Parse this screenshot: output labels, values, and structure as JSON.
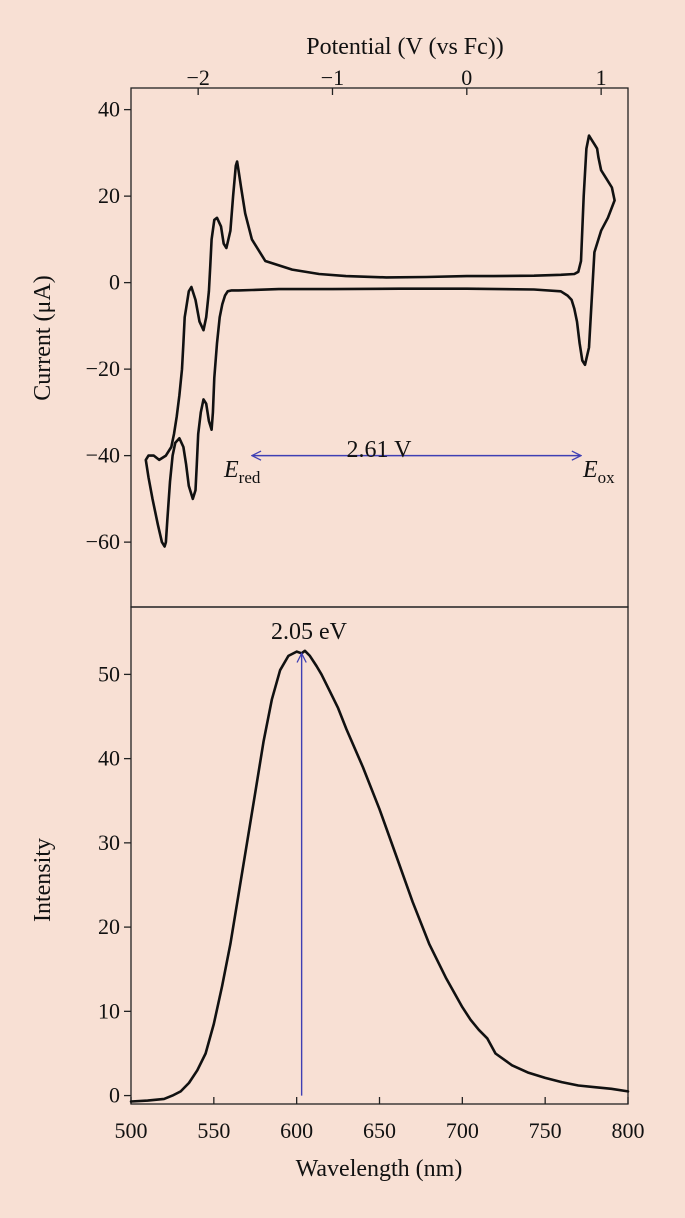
{
  "chart_data": [
    {
      "type": "line",
      "name_hint": "cyclic-voltammogram",
      "xlabel": "Potential (V (vs Fc))",
      "ylabel": "Current (μA)",
      "xlim": [
        -2.5,
        1.2
      ],
      "ylim": [
        -75,
        45
      ],
      "xticks": [
        -2,
        -1,
        0,
        1
      ],
      "xtick_labels": [
        "−2",
        "−1",
        "0",
        "1"
      ],
      "yticks": [
        40,
        20,
        0,
        -20,
        -40,
        -60
      ],
      "ytick_labels": [
        "40",
        "20",
        "0",
        "−20",
        "−40",
        "−60"
      ],
      "x_axis_position": "top",
      "grid": false,
      "series": [
        {
          "x": [
            1.1,
            1.08,
            1.04,
            1.0,
            0.98,
            0.97,
            0.95,
            0.93,
            0.91,
            0.89,
            0.87,
            0.85,
            0.83,
            0.8,
            0.7,
            0.5,
            0.2,
            0.0,
            -0.3,
            -0.6,
            -0.9,
            -1.1,
            -1.3,
            -1.5,
            -1.6,
            -1.65,
            -1.68,
            -1.7,
            -1.71,
            -1.72,
            -1.74,
            -1.76,
            -1.79,
            -1.81,
            -1.83,
            -1.86,
            -1.88,
            -1.9,
            -1.91,
            -1.92,
            -1.94,
            -1.96,
            -1.99,
            -2.02,
            -2.05,
            -2.07,
            -2.09,
            -2.1,
            -2.11,
            -2.12,
            -2.14,
            -2.16,
            -2.18,
            -2.2,
            -2.24,
            -2.29,
            -2.33,
            -2.37,
            -2.39,
            -2.37,
            -2.34,
            -2.3,
            -2.27,
            -2.25,
            -2.24,
            -2.23,
            -2.21,
            -2.19,
            -2.17,
            -2.14,
            -2.11,
            -2.09,
            -2.07,
            -2.04,
            -2.02,
            -2.01,
            -2.0,
            -1.98,
            -1.96,
            -1.94,
            -1.92,
            -1.9,
            -1.89,
            -1.88,
            -1.86,
            -1.84,
            -1.82,
            -1.8,
            -1.78,
            -1.75,
            -1.7,
            -1.6,
            -1.4,
            -1.0,
            -0.5,
            0.0,
            0.5,
            0.7,
            0.75,
            0.78,
            0.8,
            0.82,
            0.84,
            0.86,
            0.88,
            0.91,
            0.95,
            1.0,
            1.05,
            1.1
          ],
          "y": [
            19,
            22,
            24,
            26,
            29,
            31,
            32,
            33,
            34,
            31,
            20,
            5,
            2.5,
            2,
            1.8,
            1.6,
            1.5,
            1.5,
            1.3,
            1.2,
            1.5,
            2,
            3,
            5,
            10,
            16,
            22,
            26,
            28,
            27,
            20,
            12,
            8,
            9,
            13,
            15,
            14.5,
            10,
            4,
            -2,
            -8,
            -11,
            -9,
            -4,
            -1,
            -2,
            -6,
            -8,
            -14,
            -20,
            -26,
            -31,
            -35,
            -38,
            -40,
            -41,
            -40,
            -40,
            -41,
            -45,
            -50,
            -56,
            -60,
            -61,
            -60,
            -55,
            -46,
            -40,
            -37,
            -36,
            -38,
            -42,
            -47,
            -50,
            -48,
            -42,
            -35,
            -30,
            -27,
            -28,
            -32,
            -34,
            -30,
            -22,
            -14,
            -8,
            -5,
            -3,
            -2,
            -1.8,
            -1.8,
            -1.7,
            -1.5,
            -1.5,
            -1.4,
            -1.4,
            -1.6,
            -2,
            -3,
            -4,
            -6,
            -9,
            -14,
            -18,
            -19,
            -15,
            7,
            12,
            15,
            19
          ]
        }
      ],
      "annotations": [
        {
          "text": "2.61 V"
        },
        {
          "text": "E",
          "subscript": "red"
        },
        {
          "text": "E",
          "subscript": "ox"
        }
      ],
      "arrow": {
        "from_x": -1.6,
        "to_x": 0.85,
        "y": -40,
        "color": "#3f3fb4"
      }
    },
    {
      "type": "line",
      "name_hint": "emission-spectrum",
      "xlabel": "Wavelength (nm)",
      "ylabel": "Intensity",
      "xlim": [
        500,
        800
      ],
      "ylim": [
        -1,
        58
      ],
      "xticks": [
        500,
        550,
        600,
        650,
        700,
        750,
        800
      ],
      "yticks": [
        0,
        10,
        20,
        30,
        40,
        50
      ],
      "grid": false,
      "series": [
        {
          "x": [
            500,
            510,
            520,
            525,
            530,
            535,
            540,
            545,
            550,
            555,
            560,
            565,
            570,
            575,
            580,
            585,
            590,
            595,
            600,
            603,
            605,
            608,
            612,
            615,
            620,
            625,
            630,
            640,
            650,
            660,
            670,
            680,
            690,
            700,
            705,
            710,
            715,
            720,
            730,
            740,
            750,
            760,
            770,
            780,
            790,
            800
          ],
          "y": [
            -0.7,
            -0.6,
            -0.4,
            0,
            0.5,
            1.5,
            3,
            5,
            8.5,
            13,
            18,
            24,
            30,
            36,
            42,
            47,
            50.5,
            52.2,
            52.7,
            52.5,
            52.8,
            52.2,
            51,
            50,
            48,
            46,
            43.5,
            39,
            34,
            28.5,
            23,
            18,
            14,
            10.5,
            9,
            7.8,
            6.8,
            5,
            3.6,
            2.7,
            2.1,
            1.6,
            1.2,
            1.0,
            0.8,
            0.5
          ]
        }
      ],
      "annotations": [
        {
          "text": "2.05 eV"
        }
      ],
      "arrow": {
        "x": 603,
        "from_y": 0,
        "to_y": 52.5,
        "color": "#3f3fb4"
      }
    }
  ]
}
